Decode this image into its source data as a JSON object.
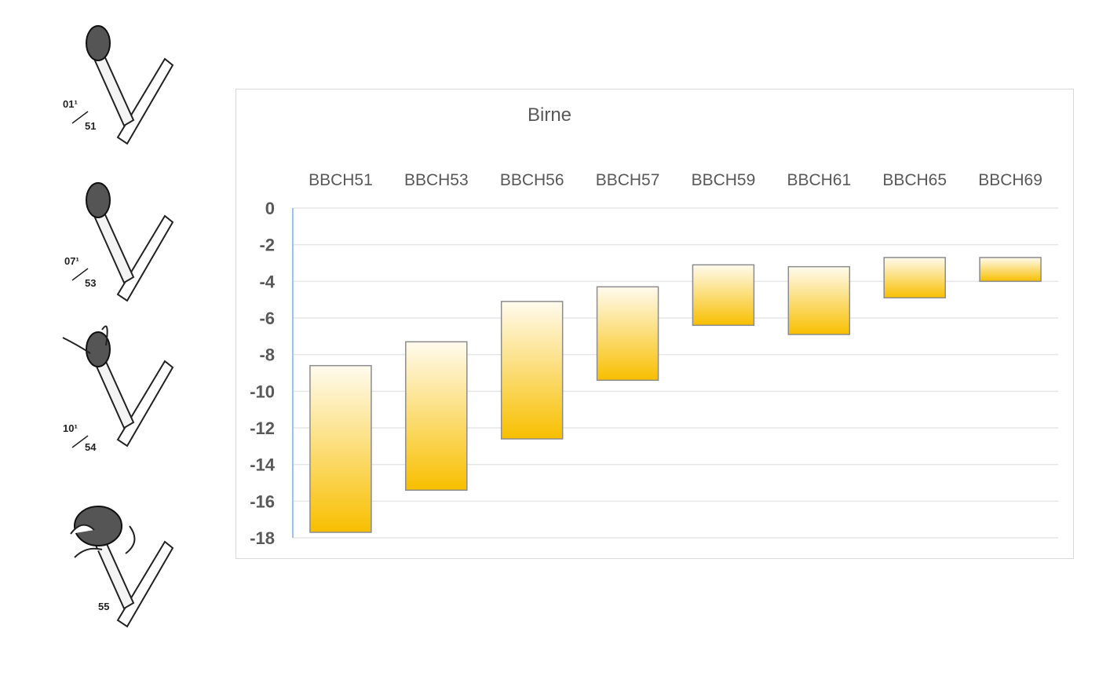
{
  "illustrations": [
    {
      "code": "01¹",
      "stage": "51"
    },
    {
      "code": "07¹",
      "stage": "53"
    },
    {
      "code": "10¹",
      "stage": "54"
    },
    {
      "code": "",
      "stage": "55"
    }
  ],
  "chart_data": {
    "type": "floating-bar",
    "title": "Birne",
    "categories": [
      "BBCH51",
      "BBCH53",
      "BBCH56",
      "BBCH57",
      "BBCH59",
      "BBCH61",
      "BBCH65",
      "BBCH69"
    ],
    "series": [
      {
        "low": [
          -17.7,
          -15.4,
          -12.6,
          -9.4,
          -6.4,
          -6.9,
          -4.9,
          -4.0
        ],
        "high": [
          -8.6,
          -7.3,
          -5.1,
          -4.3,
          -3.1,
          -3.2,
          -2.7,
          -2.7
        ]
      }
    ],
    "ylim": [
      -18,
      0
    ],
    "yticks": [
      0,
      -2,
      -4,
      -6,
      -8,
      -10,
      -12,
      -14,
      -16,
      -18
    ],
    "xaxis_position": "top",
    "grid": true,
    "colors": {
      "bar_top": "#fffbee",
      "bar_bottom": "#f8bf00",
      "bar_border": "#8c8c8c",
      "grid": "#e6e6e6",
      "axis": "#9dc3e6"
    }
  }
}
